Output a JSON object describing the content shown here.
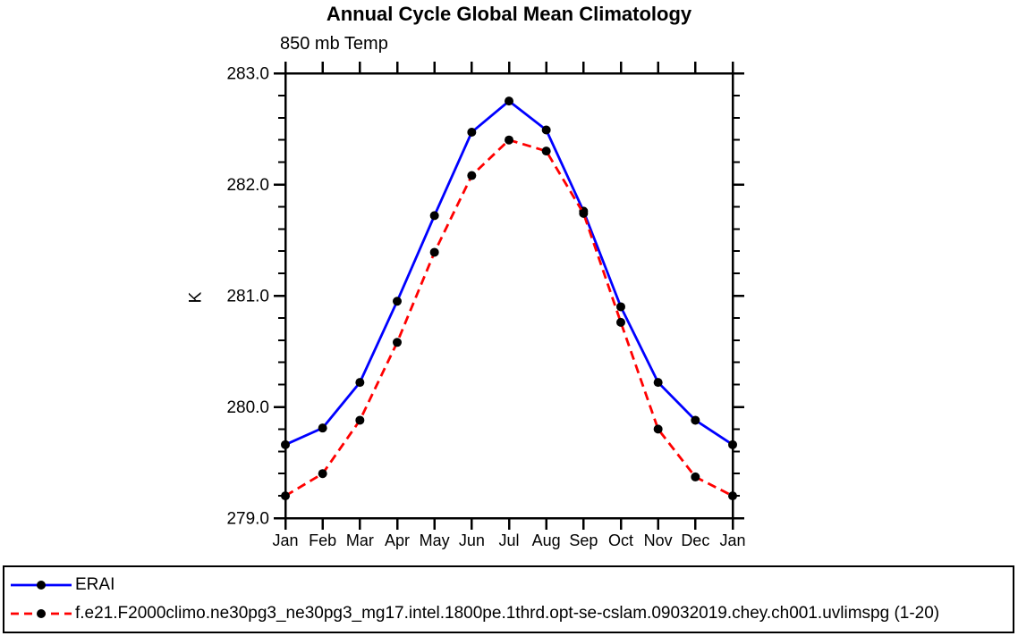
{
  "chart_data": {
    "type": "line",
    "title": "Annual Cycle Global Mean Climatology",
    "subtitle": "850 mb Temp",
    "ylabel": "K",
    "xlabel": "",
    "categories": [
      "Jan",
      "Feb",
      "Mar",
      "Apr",
      "May",
      "Jun",
      "Jul",
      "Aug",
      "Sep",
      "Oct",
      "Nov",
      "Dec",
      "Jan"
    ],
    "ylim": [
      279.0,
      283.0
    ],
    "yticks": [
      {
        "value": 283.0,
        "label": "283.0"
      },
      {
        "value": 282.0,
        "label": "282.0"
      },
      {
        "value": 281.0,
        "label": "281.0"
      },
      {
        "value": 280.0,
        "label": "280.0"
      },
      {
        "value": 279.0,
        "label": "279.0"
      }
    ],
    "y_minor_step": 0.2,
    "grid": false,
    "legend_position": "bottom-left-box",
    "axis_color": "#000000",
    "series": [
      {
        "name": "ERAI",
        "color": "#0000ff",
        "line_style": "solid",
        "marker": "circle",
        "marker_color": "#000000",
        "values": [
          279.66,
          279.81,
          280.22,
          280.95,
          281.72,
          282.47,
          282.75,
          282.49,
          281.76,
          280.9,
          280.22,
          279.88,
          279.66
        ]
      },
      {
        "name": "f.e21.F2000climo.ne30pg3_ne30pg3_mg17.intel.1800pe.1thrd.opt-se-cslam.09032019.chey.ch001.uvlimspg (1-20)",
        "color": "#ff0000",
        "line_style": "dashed",
        "marker": "circle",
        "marker_color": "#000000",
        "values": [
          279.2,
          279.4,
          279.88,
          280.58,
          281.39,
          282.08,
          282.4,
          282.3,
          281.74,
          280.76,
          279.8,
          279.37,
          279.2
        ]
      }
    ]
  }
}
